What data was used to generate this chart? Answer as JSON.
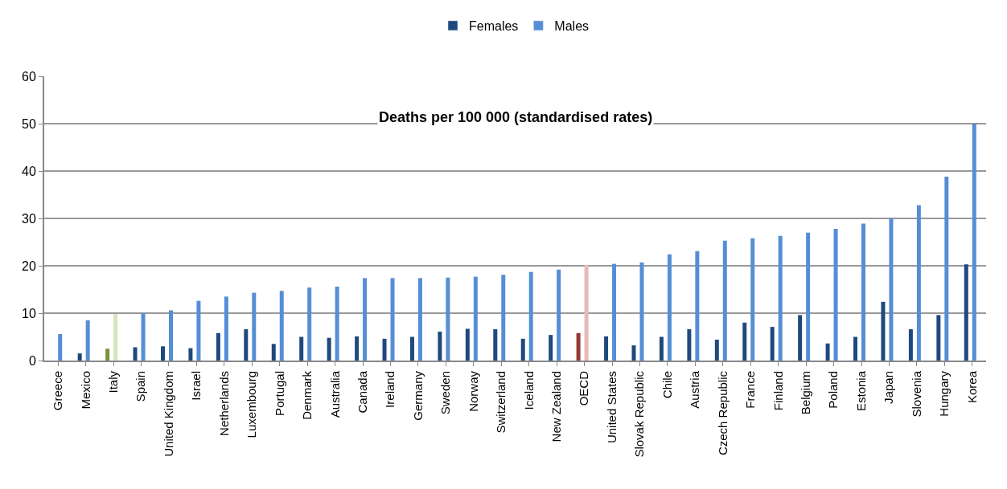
{
  "chart_data": {
    "type": "bar",
    "title": "Deaths per 100 000 (standardised rates)",
    "categories": [
      "Greece",
      "Mexico",
      "Italy",
      "Spain",
      "United Kingdom",
      "Israel",
      "Netherlands",
      "Luxembourg",
      "Portugal",
      "Denmark",
      "Australia",
      "Canada",
      "Ireland",
      "Germany",
      "Sweden",
      "Norway",
      "Switzerland",
      "Iceland",
      "New Zealand",
      "OECD",
      "United States",
      "Slovak Republic",
      "Chile",
      "Austria",
      "Czech Republic",
      "France",
      "Finland",
      "Belgium",
      "Poland",
      "Estonia",
      "Japan",
      "Slovenia",
      "Hungary",
      "Korea"
    ],
    "series": [
      {
        "name": "Females",
        "color": "#1f497d",
        "colors": [
          "#1f497d",
          "#1f497d",
          "#77933c",
          "#1f497d",
          "#1f497d",
          "#1f497d",
          "#1f497d",
          "#1f497d",
          "#1f497d",
          "#1f497d",
          "#1f497d",
          "#1f497d",
          "#1f497d",
          "#1f497d",
          "#1f497d",
          "#1f497d",
          "#1f497d",
          "#1f497d",
          "#1f497d",
          "#953735",
          "#1f497d",
          "#1f497d",
          "#1f497d",
          "#1f497d",
          "#1f497d",
          "#1f497d",
          "#1f497d",
          "#1f497d",
          "#1f497d",
          "#1f497d",
          "#1f497d",
          "#1f497d",
          "#1f497d",
          "#1f497d"
        ],
        "values": [
          null,
          1.5,
          2.5,
          2.8,
          3.0,
          2.6,
          5.8,
          6.6,
          3.5,
          5.0,
          4.8,
          5.1,
          4.6,
          5.0,
          6.1,
          6.7,
          6.6,
          4.6,
          5.4,
          5.8,
          5.1,
          3.2,
          5.0,
          6.6,
          4.4,
          8.0,
          7.1,
          9.6,
          3.6,
          5.0,
          12.4,
          6.6,
          9.6,
          20.3
        ]
      },
      {
        "name": "Males",
        "color": "#558ed5",
        "colors": [
          "#558ed5",
          "#558ed5",
          "#d7e4bd",
          "#558ed5",
          "#558ed5",
          "#558ed5",
          "#558ed5",
          "#558ed5",
          "#558ed5",
          "#558ed5",
          "#558ed5",
          "#558ed5",
          "#558ed5",
          "#558ed5",
          "#558ed5",
          "#558ed5",
          "#558ed5",
          "#558ed5",
          "#558ed5",
          "#e6b9b8",
          "#558ed5",
          "#558ed5",
          "#558ed5",
          "#558ed5",
          "#558ed5",
          "#558ed5",
          "#558ed5",
          "#558ed5",
          "#558ed5",
          "#558ed5",
          "#558ed5",
          "#558ed5",
          "#558ed5",
          "#558ed5"
        ],
        "values": [
          5.6,
          8.5,
          9.8,
          10.0,
          10.6,
          12.6,
          13.5,
          14.3,
          14.7,
          15.4,
          15.6,
          17.4,
          17.4,
          17.4,
          17.5,
          17.7,
          18.1,
          18.7,
          19.2,
          20.2,
          20.4,
          20.7,
          22.4,
          23.1,
          25.3,
          25.8,
          26.3,
          27.0,
          27.8,
          28.9,
          30.0,
          32.8,
          38.8,
          50
        ]
      }
    ],
    "ylim": [
      0,
      60
    ],
    "yticks": [
      0,
      10,
      20,
      30,
      40,
      50,
      60
    ],
    "grid": "y",
    "legend": "top"
  }
}
